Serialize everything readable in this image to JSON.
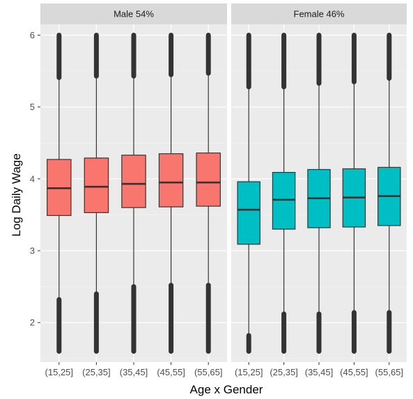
{
  "chart_data": {
    "type": "boxplot",
    "xlabel": "Age x Gender",
    "ylabel": "Log Daily Wage",
    "ylim": [
      1.45,
      6.15
    ],
    "yticks": [
      2,
      3,
      4,
      5,
      6
    ],
    "categories": [
      "(15,25]",
      "(25,35]",
      "(35,45]",
      "(45,55]",
      "(55,65]"
    ],
    "grid": true,
    "panels": [
      {
        "label": "Male 54%",
        "fill": "#F8766D",
        "boxes": [
          {
            "category": "(15,25]",
            "whisker_low": 2.32,
            "q1": 3.49,
            "median": 3.87,
            "q3": 4.27,
            "whisker_high": 5.41
          },
          {
            "category": "(25,35]",
            "whisker_low": 2.4,
            "q1": 3.53,
            "median": 3.89,
            "q3": 4.29,
            "whisker_high": 5.43
          },
          {
            "category": "(35,45]",
            "whisker_low": 2.5,
            "q1": 3.6,
            "median": 3.93,
            "q3": 4.33,
            "whisker_high": 5.43
          },
          {
            "category": "(45,55]",
            "whisker_low": 2.52,
            "q1": 3.61,
            "median": 3.95,
            "q3": 4.35,
            "whisker_high": 5.45
          },
          {
            "category": "(55,65]",
            "whisker_low": 2.52,
            "q1": 3.62,
            "median": 3.95,
            "q3": 4.36,
            "whisker_high": 5.47
          }
        ]
      },
      {
        "label": "Female 46%",
        "fill": "#00BFC4",
        "boxes": [
          {
            "category": "(15,25]",
            "whisker_low": 1.82,
            "q1": 3.09,
            "median": 3.57,
            "q3": 3.96,
            "whisker_high": 5.28
          },
          {
            "category": "(25,35]",
            "whisker_low": 2.12,
            "q1": 3.3,
            "median": 3.71,
            "q3": 4.09,
            "whisker_high": 5.28
          },
          {
            "category": "(35,45]",
            "whisker_low": 2.12,
            "q1": 3.32,
            "median": 3.73,
            "q3": 4.13,
            "whisker_high": 5.33
          },
          {
            "category": "(45,55]",
            "whisker_low": 2.14,
            "q1": 3.33,
            "median": 3.74,
            "q3": 4.14,
            "whisker_high": 5.35
          },
          {
            "category": "(55,65]",
            "whisker_low": 2.14,
            "q1": 3.35,
            "median": 3.76,
            "q3": 4.16,
            "whisker_high": 5.4
          }
        ]
      }
    ],
    "outlier_range": [
      1.6,
      6.0
    ]
  }
}
